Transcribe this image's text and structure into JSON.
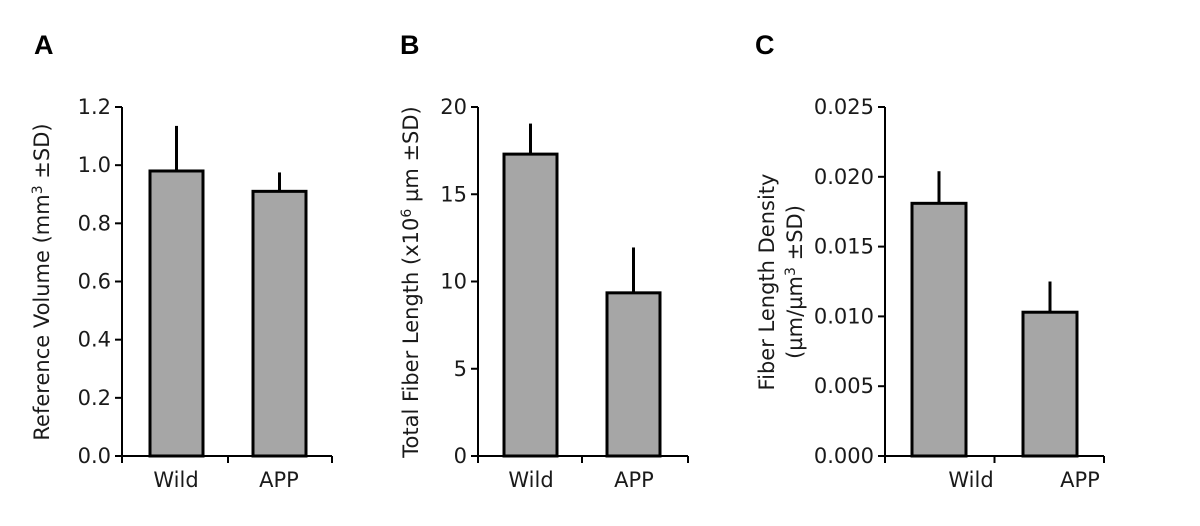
{
  "chart_data": [
    {
      "type": "bar",
      "panel": "A",
      "categories": [
        "Wild",
        "APP"
      ],
      "values": [
        0.98,
        0.91
      ],
      "errors": [
        0.155,
        0.065
      ],
      "ylim": [
        0,
        1.2
      ],
      "yticks": [
        "0.0",
        "0.2",
        "0.4",
        "0.6",
        "0.8",
        "1.0",
        "1.2"
      ],
      "ylabel": "Reference Volume (mm",
      "ylabel_sup": "3",
      "ylabel_tail": " ±SD)",
      "bar_color": "#a6a6a6"
    },
    {
      "type": "bar",
      "panel": "B",
      "categories": [
        "Wild",
        "APP"
      ],
      "values": [
        17.3,
        9.35
      ],
      "errors": [
        1.75,
        2.6
      ],
      "ylim": [
        0,
        20
      ],
      "yticks": [
        "0",
        "5",
        "10",
        "15",
        "20"
      ],
      "ylabel": "Total Fiber Length (x10",
      "ylabel_sup": "6",
      "ylabel_tail": " µm ±SD)",
      "bar_color": "#a6a6a6"
    },
    {
      "type": "bar",
      "panel": "C",
      "categories": [
        "Wild",
        "APP"
      ],
      "values": [
        0.0181,
        0.0103
      ],
      "errors": [
        0.0023,
        0.0022
      ],
      "ylim": [
        0,
        0.025
      ],
      "yticks": [
        "0.000",
        "0.005",
        "0.010",
        "0.015",
        "0.020",
        "0.025"
      ],
      "ylabel": "Fiber Length Density",
      "ylabel2": "(µm/µm",
      "ylabel2_sup": "3",
      "ylabel2_tail": " ±SD)",
      "bar_color": "#a6a6a6"
    }
  ]
}
